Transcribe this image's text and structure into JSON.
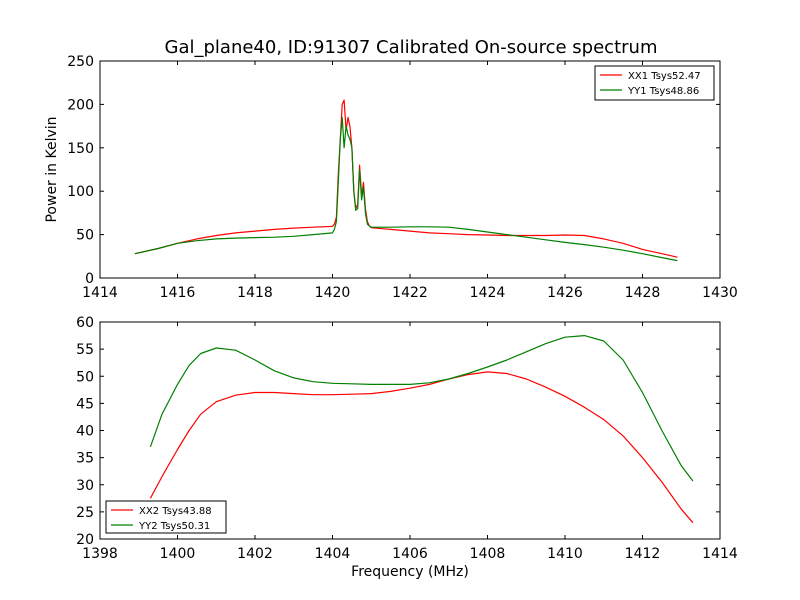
{
  "chart_data": [
    {
      "type": "line",
      "title": "Gal_plane40, ID:91307 Calibrated On-source spectrum",
      "xlabel": "",
      "ylabel": "Power in Kelvin",
      "xlim": [
        1414,
        1430
      ],
      "ylim": [
        0,
        250
      ],
      "xticks": [
        "1414",
        "1416",
        "1418",
        "1420",
        "1422",
        "1424",
        "1426",
        "1428",
        "1430"
      ],
      "yticks": [
        "0",
        "50",
        "100",
        "150",
        "200",
        "250"
      ],
      "grid": false,
      "legend_position": "top-right",
      "series": [
        {
          "name": "XX1 Tsys52.47",
          "color": "#ff0000",
          "x": [
            1414.9,
            1415.5,
            1416.0,
            1416.5,
            1417.0,
            1417.5,
            1418.0,
            1418.5,
            1419.0,
            1419.5,
            1420.0,
            1420.05,
            1420.1,
            1420.15,
            1420.2,
            1420.25,
            1420.3,
            1420.35,
            1420.4,
            1420.45,
            1420.5,
            1420.55,
            1420.6,
            1420.65,
            1420.7,
            1420.75,
            1420.8,
            1420.85,
            1420.9,
            1420.95,
            1421.0,
            1421.5,
            1422.0,
            1422.5,
            1423.0,
            1423.5,
            1424.0,
            1424.5,
            1425.0,
            1425.5,
            1426.0,
            1426.5,
            1427.0,
            1427.5,
            1428.0,
            1428.5,
            1428.9
          ],
          "y": [
            28,
            34,
            40,
            45,
            49,
            52,
            54,
            56,
            57.5,
            58.5,
            59.5,
            62,
            70,
            120,
            160,
            200,
            205,
            170,
            185,
            175,
            150,
            100,
            80,
            85,
            130,
            95,
            110,
            80,
            65,
            60,
            58,
            56,
            54,
            52,
            51,
            50,
            49.5,
            49,
            49,
            49,
            49.5,
            49,
            45,
            40,
            33,
            28,
            24
          ]
        },
        {
          "name": "YY1 Tsys48.86",
          "color": "#008000",
          "x": [
            1414.9,
            1415.5,
            1416.0,
            1416.5,
            1417.0,
            1417.5,
            1418.0,
            1418.5,
            1419.0,
            1419.5,
            1420.0,
            1420.05,
            1420.1,
            1420.15,
            1420.2,
            1420.25,
            1420.3,
            1420.35,
            1420.4,
            1420.45,
            1420.5,
            1420.55,
            1420.6,
            1420.65,
            1420.7,
            1420.75,
            1420.8,
            1420.85,
            1420.9,
            1420.95,
            1421.0,
            1421.5,
            1422.0,
            1422.5,
            1423.0,
            1423.5,
            1424.0,
            1424.5,
            1425.0,
            1425.5,
            1426.0,
            1426.5,
            1427.0,
            1427.5,
            1428.0,
            1428.5,
            1428.9
          ],
          "y": [
            28,
            34,
            40,
            43,
            45,
            46,
            46.5,
            47,
            48,
            50,
            52,
            56,
            65,
            110,
            160,
            185,
            150,
            175,
            165,
            160,
            150,
            100,
            78,
            80,
            125,
            90,
            105,
            75,
            62,
            60,
            58.5,
            58.5,
            59,
            59,
            58.5,
            56,
            53,
            50,
            47,
            44,
            41,
            38.5,
            35.5,
            32,
            28,
            23.5,
            20
          ]
        }
      ]
    },
    {
      "type": "line",
      "title": "",
      "xlabel": "Frequency (MHz)",
      "ylabel": "",
      "xlim": [
        1398,
        1414
      ],
      "ylim": [
        20,
        60
      ],
      "xticks": [
        "1398",
        "1400",
        "1402",
        "1404",
        "1406",
        "1408",
        "1410",
        "1412",
        "1414"
      ],
      "yticks": [
        "20",
        "25",
        "30",
        "35",
        "40",
        "45",
        "50",
        "55",
        "60"
      ],
      "grid": false,
      "legend_position": "bottom-left",
      "series": [
        {
          "name": "XX2 Tsys43.88",
          "color": "#ff0000",
          "x": [
            1399.3,
            1399.6,
            1400.0,
            1400.3,
            1400.6,
            1401.0,
            1401.5,
            1402.0,
            1402.5,
            1403.0,
            1403.5,
            1404.0,
            1404.5,
            1405.0,
            1405.5,
            1406.0,
            1406.5,
            1407.0,
            1407.5,
            1408.0,
            1408.5,
            1409.0,
            1409.5,
            1410.0,
            1410.5,
            1411.0,
            1411.5,
            1412.0,
            1412.5,
            1413.0,
            1413.3
          ],
          "y": [
            27.5,
            31.5,
            36.5,
            40,
            43,
            45.3,
            46.5,
            47,
            47,
            46.8,
            46.6,
            46.6,
            46.7,
            46.8,
            47.2,
            47.8,
            48.5,
            49.5,
            50.3,
            50.8,
            50.5,
            49.5,
            48,
            46.3,
            44.3,
            42,
            39,
            35,
            30.5,
            25.5,
            23
          ]
        },
        {
          "name": "YY2 Tsys50.31",
          "color": "#008000",
          "x": [
            1399.3,
            1399.6,
            1400.0,
            1400.3,
            1400.6,
            1401.0,
            1401.5,
            1402.0,
            1402.5,
            1403.0,
            1403.5,
            1404.0,
            1404.5,
            1405.0,
            1405.5,
            1406.0,
            1406.5,
            1407.0,
            1407.5,
            1408.0,
            1408.5,
            1409.0,
            1409.5,
            1410.0,
            1410.5,
            1411.0,
            1411.5,
            1412.0,
            1412.5,
            1413.0,
            1413.3
          ],
          "y": [
            37,
            43,
            48.5,
            52,
            54.2,
            55.2,
            54.8,
            53,
            51,
            49.7,
            49,
            48.7,
            48.6,
            48.5,
            48.5,
            48.5,
            48.8,
            49.5,
            50.5,
            51.7,
            53,
            54.5,
            56,
            57.2,
            57.5,
            56.5,
            53,
            47,
            40,
            33.5,
            30.7
          ]
        }
      ]
    }
  ]
}
